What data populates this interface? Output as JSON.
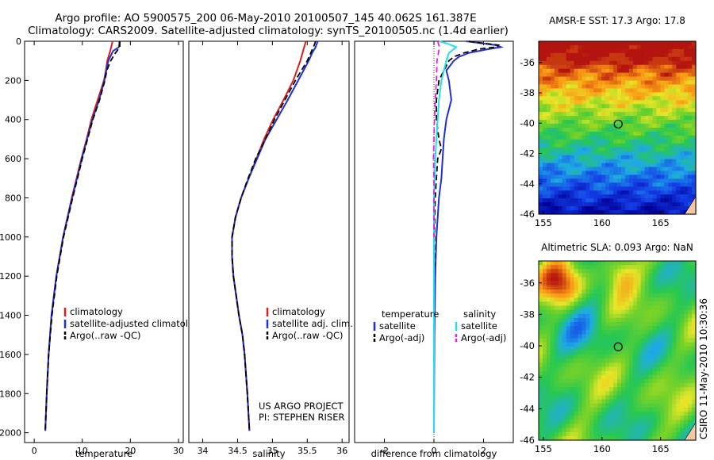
{
  "title_line1": "Argo profile: AO 5900575_200 06-May-2010 20100507_145 40.062S 161.387E",
  "title_line2": "Climatology: CARS2009. Satellite-adjusted climatology: synTS_20100505.nc (1.4d earlier)",
  "side_label": "CSIRO 11-May-2010 10:30:36",
  "project_line1": "US ARGO PROJECT",
  "project_line2": "PI: STEPHEN RISER",
  "colors": {
    "climatology": "#d42020",
    "satellite": "#1f2fd8",
    "argo": "#000000",
    "cyan": "#22e0e8",
    "magenta": "#e81ee8",
    "sst_hot": "#b01010",
    "land": "#f5c8a0"
  },
  "chart_data": [
    {
      "name": "temperature",
      "type": "line",
      "xlabel": "temperature",
      "ylabel": "",
      "xlim": [
        -2,
        31
      ],
      "ylim": [
        2050,
        0
      ],
      "x_ticks": [
        0,
        10,
        20,
        30
      ],
      "x_ticklabels": [
        "0",
        "10",
        "20",
        "30"
      ],
      "y_ticks": [
        0,
        200,
        400,
        600,
        800,
        1000,
        1200,
        1400,
        1600,
        1800,
        2000
      ],
      "y_ticklabels": [
        "0",
        "200",
        "400",
        "600",
        "800",
        "1000",
        "1200",
        "1400",
        "1600",
        "1800",
        "2000"
      ],
      "legend": [
        "climatology",
        "satellite-adjusted climatology",
        "Argo(..raw -QC)"
      ],
      "series": [
        {
          "name": "climatology",
          "style": "solid",
          "color": "climatology",
          "depth": [
            0,
            50,
            100,
            150,
            200,
            300,
            400,
            500,
            600,
            700,
            800,
            1000,
            1200,
            1400,
            1600,
            1800,
            1990
          ],
          "values": [
            16.3,
            15.8,
            15.2,
            14.9,
            14.5,
            13.2,
            11.9,
            10.9,
            9.8,
            8.8,
            7.8,
            6.0,
            4.6,
            3.6,
            3.0,
            2.6,
            2.3
          ]
        },
        {
          "name": "satellite-adjusted climatology",
          "style": "solid",
          "color": "satellite",
          "depth": [
            0,
            10,
            30,
            50,
            100,
            150,
            200,
            300,
            400,
            500,
            600,
            700,
            800,
            1000,
            1200,
            1400,
            1600,
            1800,
            1990
          ],
          "values": [
            17.7,
            17.7,
            17.6,
            16.4,
            15.4,
            15.0,
            14.6,
            13.5,
            12.1,
            11.0,
            9.9,
            8.9,
            7.9,
            6.0,
            4.6,
            3.6,
            3.0,
            2.6,
            2.3
          ]
        },
        {
          "name": "Argo(..raw -QC)",
          "style": "dashed",
          "color": "argo",
          "depth": [
            0,
            10,
            30,
            60,
            100,
            150,
            200,
            300,
            400,
            500,
            600,
            700,
            800,
            1000,
            1200,
            1400,
            1600,
            1800,
            1990
          ],
          "values": [
            17.8,
            17.8,
            17.8,
            16.9,
            15.9,
            15.1,
            14.7,
            13.6,
            12.2,
            11.1,
            10.0,
            9.0,
            8.0,
            6.1,
            4.7,
            3.7,
            3.0,
            2.6,
            2.3
          ]
        }
      ]
    },
    {
      "name": "salinity",
      "type": "line",
      "xlabel": "salinity",
      "ylabel": "",
      "xlim": [
        33.8,
        36.1
      ],
      "ylim": [
        2050,
        0
      ],
      "x_ticks": [
        34,
        34.5,
        35,
        35.5,
        36
      ],
      "x_ticklabels": [
        "34",
        "34.5",
        "35",
        "35.5",
        "36"
      ],
      "legend": [
        "climatology",
        "satellite adj. clim.",
        "Argo(..raw -QC)"
      ],
      "series": [
        {
          "name": "climatology",
          "style": "solid",
          "color": "climatology",
          "depth": [
            0,
            50,
            100,
            200,
            300,
            400,
            500,
            600,
            700,
            800,
            900,
            1000,
            1100,
            1200,
            1300,
            1400,
            1500,
            1600,
            1800,
            1990
          ],
          "values": [
            35.48,
            35.44,
            35.4,
            35.3,
            35.16,
            35.01,
            34.88,
            34.77,
            34.66,
            34.55,
            34.47,
            34.42,
            34.42,
            34.44,
            34.48,
            34.52,
            34.57,
            34.6,
            34.64,
            34.67
          ]
        },
        {
          "name": "satellite adj. clim.",
          "style": "solid",
          "color": "satellite",
          "depth": [
            0,
            30,
            60,
            100,
            200,
            300,
            400,
            500,
            600,
            700,
            800,
            900,
            1000,
            1100,
            1200,
            1300,
            1400,
            1500,
            1600,
            1800,
            1990
          ],
          "values": [
            35.65,
            35.62,
            35.57,
            35.52,
            35.37,
            35.22,
            35.06,
            34.9,
            34.78,
            34.66,
            34.55,
            34.47,
            34.42,
            34.42,
            34.44,
            34.48,
            34.52,
            34.57,
            34.6,
            34.64,
            34.67
          ]
        },
        {
          "name": "Argo(..raw -QC)",
          "style": "dashed",
          "color": "argo",
          "depth": [
            0,
            20,
            60,
            100,
            200,
            300,
            400,
            500,
            600,
            700,
            800,
            900,
            1000,
            1100,
            1200,
            1300,
            1400,
            1500,
            1600,
            1800,
            1990
          ],
          "values": [
            35.62,
            35.6,
            35.55,
            35.5,
            35.33,
            35.18,
            35.03,
            34.9,
            34.76,
            34.65,
            34.55,
            34.47,
            34.42,
            34.42,
            34.44,
            34.48,
            34.52,
            34.57,
            34.6,
            34.64,
            34.67
          ]
        }
      ]
    },
    {
      "name": "difference from climatology",
      "type": "line",
      "xlabel": "difference from climatology",
      "ylabel": "",
      "xlim": [
        -3.2,
        3.2
      ],
      "ylim": [
        2050,
        0
      ],
      "x_ticks": [
        -2,
        0,
        2
      ],
      "x_ticklabels": [
        "-2",
        "0",
        "2"
      ],
      "zero_line": 0,
      "legend_groups": [
        {
          "header": "temperature",
          "entries": [
            "satellite",
            "Argo(-adj)"
          ]
        },
        {
          "header": "salinity",
          "entries": [
            "satellite",
            "Argo(-adj)"
          ]
        }
      ],
      "series": [
        {
          "name": "temperature satellite",
          "style": "solid",
          "color": "satellite",
          "depth": [
            0,
            10,
            20,
            30,
            40,
            60,
            80,
            100,
            150,
            200,
            300,
            400,
            500,
            600,
            700,
            800,
            1000,
            1200,
            1500,
            2000
          ],
          "values": [
            1.3,
            1.9,
            2.5,
            2.7,
            2.2,
            1.4,
            1.0,
            0.8,
            0.5,
            0.6,
            0.7,
            0.5,
            0.4,
            0.35,
            0.3,
            0.2,
            0.1,
            0.05,
            0.02,
            0.0
          ]
        },
        {
          "name": "temperature Argo(-adj)",
          "style": "dashed",
          "color": "argo",
          "depth": [
            0,
            10,
            20,
            30,
            40,
            60,
            80,
            100,
            150,
            200,
            300,
            400,
            500,
            550,
            600,
            700,
            800,
            900,
            1000,
            1200,
            1500,
            2000
          ],
          "values": [
            1.4,
            2.0,
            2.6,
            2.5,
            1.8,
            1.2,
            0.8,
            0.6,
            0.4,
            0.2,
            0.1,
            0.1,
            0.2,
            0.3,
            0.15,
            0.1,
            0.05,
            0.03,
            0.02,
            0.01,
            0.0,
            0.0
          ]
        },
        {
          "name": "salinity satellite",
          "style": "solid",
          "color": "cyan",
          "depth": [
            0,
            10,
            30,
            60,
            100,
            150,
            200,
            300,
            400,
            500,
            600,
            800,
            1000,
            1200,
            1500,
            2000
          ],
          "values": [
            0.2,
            0.5,
            0.9,
            0.6,
            0.5,
            0.4,
            0.3,
            0.2,
            0.15,
            0.1,
            0.05,
            0.0,
            0.0,
            0.0,
            0.0,
            0.0
          ]
        },
        {
          "name": "salinity Argo(-adj)",
          "style": "dashed",
          "color": "magenta",
          "depth": [
            0,
            30,
            60,
            100,
            200,
            300,
            400,
            500,
            600,
            700,
            800,
            1000
          ],
          "values": [
            0.15,
            0.22,
            0.18,
            0.12,
            0.1,
            0.05,
            0.02,
            0.0,
            -0.02,
            0.0,
            0.0,
            0.0
          ]
        }
      ]
    },
    {
      "name": "AMSR-E SST",
      "type": "heatmap",
      "title": "AMSR-E SST: 17.3 Argo: 17.8",
      "xlim": [
        154.6,
        168
      ],
      "ylim": [
        -46,
        -34.6
      ],
      "x_ticks": [
        155,
        160,
        165
      ],
      "x_ticklabels": [
        "155",
        "160",
        "165"
      ],
      "y_ticks": [
        -36,
        -38,
        -40,
        -42,
        -44,
        -46
      ],
      "y_ticklabels": [
        "-36",
        "-38",
        "-40",
        "-42",
        "-44",
        "-46"
      ],
      "marker": {
        "lon": 161.387,
        "lat": -40.062
      },
      "sst_value": 17.3,
      "argo_value": 17.8
    },
    {
      "name": "Altimetric SLA",
      "type": "heatmap",
      "title": "Altimetric SLA: 0.093 Argo: NaN",
      "xlim": [
        154.6,
        168
      ],
      "ylim": [
        -46,
        -34.6
      ],
      "x_ticks": [
        155,
        160,
        165
      ],
      "x_ticklabels": [
        "155",
        "160",
        "165"
      ],
      "y_ticks": [
        -36,
        -38,
        -40,
        -42,
        -44,
        -46
      ],
      "y_ticklabels": [
        "-36",
        "-38",
        "-40",
        "-42",
        "-44",
        "-46"
      ],
      "marker": {
        "lon": 161.387,
        "lat": -40.062
      },
      "sla_value": 0.093,
      "argo_value": "NaN"
    }
  ]
}
